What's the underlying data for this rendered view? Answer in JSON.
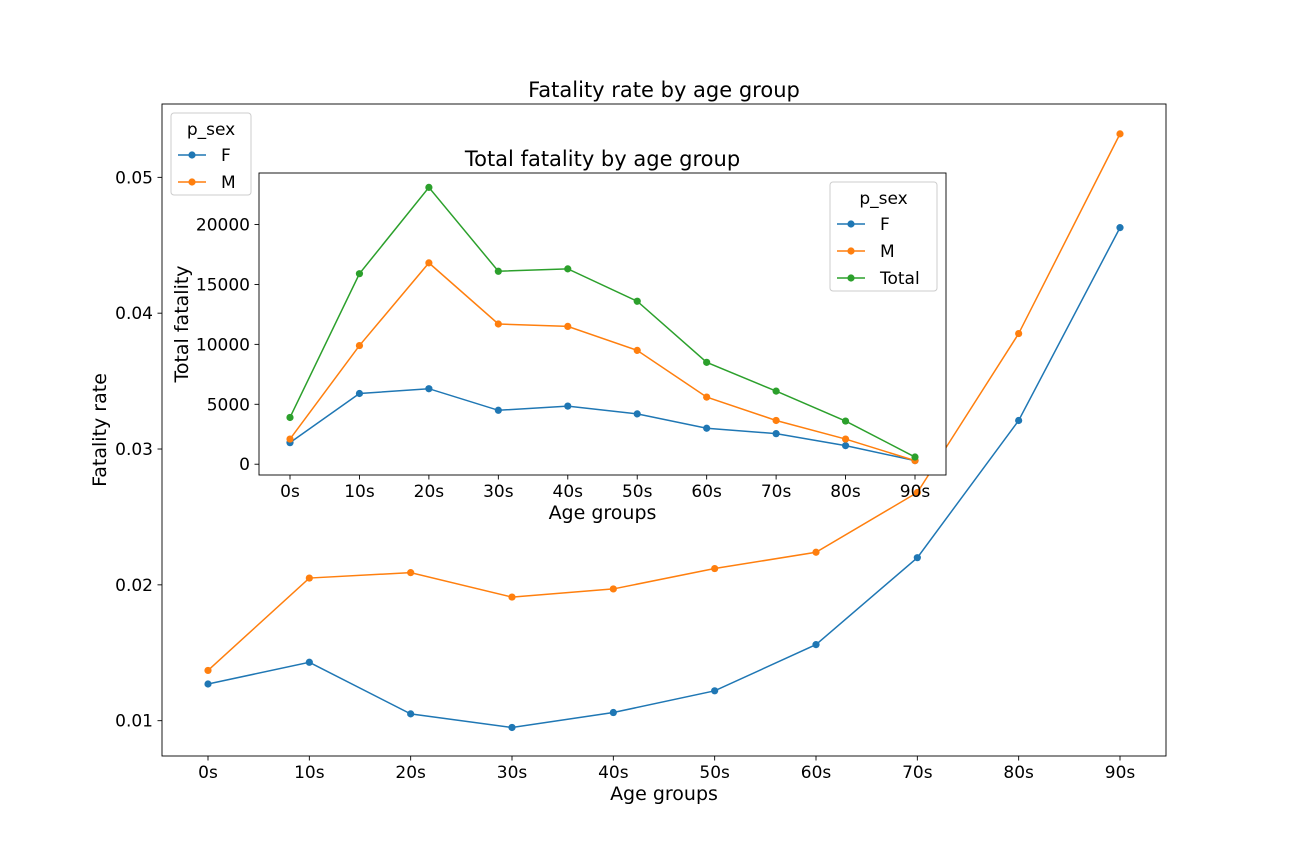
{
  "chart_data": [
    {
      "type": "line",
      "title": "Fatality rate by age group",
      "xlabel": "Age groups",
      "ylabel": "Fatality rate",
      "categories": [
        "0s",
        "10s",
        "20s",
        "30s",
        "40s",
        "50s",
        "60s",
        "70s",
        "80s",
        "90s"
      ],
      "ylim": [
        0.0074,
        0.0554
      ],
      "yticks": [
        0.01,
        0.02,
        0.03,
        0.04,
        0.05
      ],
      "ytick_labels": [
        "0.01",
        "0.02",
        "0.03",
        "0.04",
        "0.05"
      ],
      "grid": false,
      "legend": {
        "title": "p_sex",
        "placement": "top-left"
      },
      "series": [
        {
          "name": "F",
          "color": "#1f77b4",
          "values": [
            0.0127,
            0.0143,
            0.0105,
            0.0095,
            0.0106,
            0.0122,
            0.0156,
            0.022,
            0.0321,
            0.0463
          ]
        },
        {
          "name": "M",
          "color": "#ff7f0e",
          "values": [
            0.0137,
            0.0205,
            0.0209,
            0.0191,
            0.0197,
            0.0212,
            0.0224,
            0.0268,
            0.0385,
            0.0532
          ]
        }
      ]
    },
    {
      "type": "line",
      "title": "Total fatality by age group",
      "xlabel": "Age groups",
      "ylabel": "Total fatality",
      "categories": [
        "0s",
        "10s",
        "20s",
        "30s",
        "40s",
        "50s",
        "60s",
        "70s",
        "80s",
        "90s"
      ],
      "ylim": [
        -900,
        24300
      ],
      "yticks": [
        0,
        5000,
        10000,
        15000,
        20000
      ],
      "ytick_labels": [
        "0",
        "5000",
        "10000",
        "15000",
        "20000"
      ],
      "grid": false,
      "legend": {
        "title": "p_sex",
        "placement": "top-right"
      },
      "series": [
        {
          "name": "F",
          "color": "#1f77b4",
          "values": [
            1800,
            5900,
            6300,
            4500,
            4850,
            4200,
            3000,
            2550,
            1550,
            300
          ]
        },
        {
          "name": "M",
          "color": "#ff7f0e",
          "values": [
            2100,
            9900,
            16800,
            11700,
            11500,
            9500,
            5600,
            3650,
            2100,
            300
          ]
        },
        {
          "name": "Total",
          "color": "#2ca02c",
          "values": [
            3900,
            15900,
            23100,
            16100,
            16300,
            13600,
            8500,
            6100,
            3600,
            600
          ]
        }
      ]
    }
  ]
}
